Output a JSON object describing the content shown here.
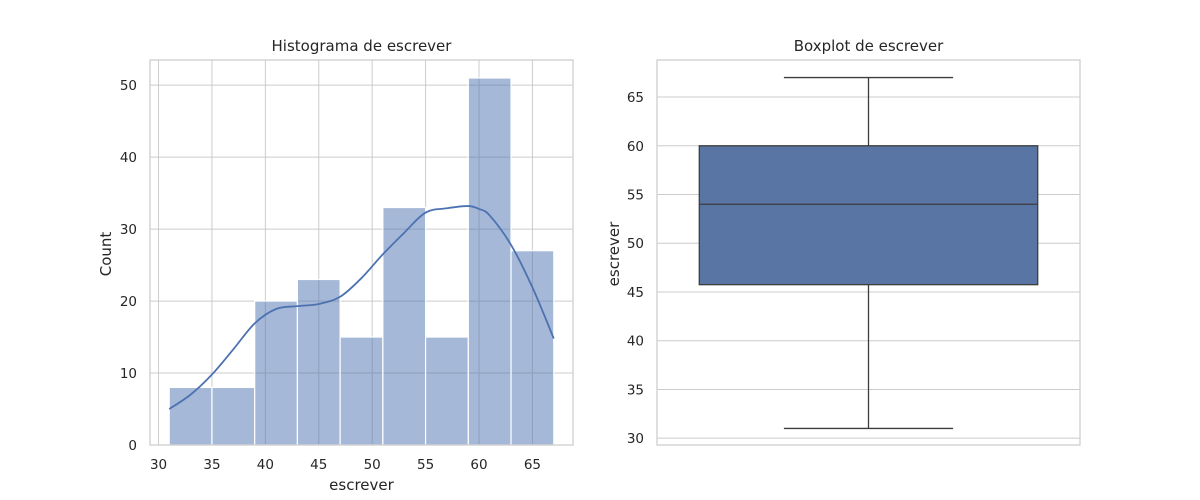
{
  "chart_data": [
    {
      "type": "bar",
      "subtype": "histogram",
      "title": "Histograma de escrever",
      "xlabel": "escrever",
      "ylabel": "Count",
      "xlim": [
        29.2,
        68.8
      ],
      "ylim": [
        0,
        53.5
      ],
      "xticks": [
        30,
        35,
        40,
        45,
        50,
        55,
        60,
        65
      ],
      "yticks": [
        0,
        10,
        20,
        30,
        40,
        50
      ],
      "grid": true,
      "bar_color": "#4c72b0",
      "bar_opacity": 0.5,
      "bins": [
        {
          "x0": 31.0,
          "x1": 35.0,
          "count": 8
        },
        {
          "x0": 35.0,
          "x1": 39.0,
          "count": 8
        },
        {
          "x0": 39.0,
          "x1": 43.0,
          "count": 20
        },
        {
          "x0": 43.0,
          "x1": 47.0,
          "count": 23
        },
        {
          "x0": 47.0,
          "x1": 51.0,
          "count": 15
        },
        {
          "x0": 51.0,
          "x1": 55.0,
          "count": 33
        },
        {
          "x0": 55.0,
          "x1": 59.0,
          "count": 15
        },
        {
          "x0": 59.0,
          "x1": 63.0,
          "count": 51
        },
        {
          "x0": 63.0,
          "x1": 67.0,
          "count": 27
        }
      ],
      "kde": {
        "color": "#4c72b0",
        "x": [
          31,
          33,
          35,
          37,
          39,
          41,
          43,
          45,
          47,
          49,
          51,
          53,
          55,
          57,
          59,
          60,
          61,
          63,
          65,
          67
        ],
        "y": [
          5.0,
          7.0,
          9.8,
          13.3,
          16.9,
          18.9,
          19.3,
          19.6,
          20.6,
          23.2,
          26.5,
          29.5,
          32.3,
          32.9,
          33.2,
          32.8,
          31.9,
          27.8,
          21.9,
          14.8
        ]
      }
    },
    {
      "type": "boxplot",
      "title": "Boxplot de escrever",
      "xlabel": "",
      "ylabel": "escrever",
      "ylim": [
        29.3,
        68.8
      ],
      "yticks": [
        30,
        35,
        40,
        45,
        50,
        55,
        60,
        65
      ],
      "grid": true,
      "box_color": "#5975a4",
      "line_color": "#3d3d3d",
      "stats": {
        "whislo": 31,
        "q1": 45.75,
        "median": 54,
        "q3": 60,
        "whishi": 67
      }
    }
  ]
}
